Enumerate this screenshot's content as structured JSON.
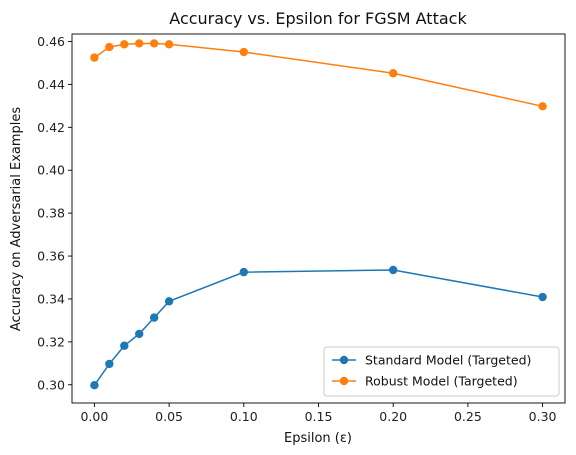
{
  "chart_data": {
    "type": "line",
    "title": "Accuracy vs. Epsilon for FGSM Attack",
    "xlabel": "Epsilon (ε)",
    "ylabel": "Accuracy on Adversarial Examples",
    "xlim": [
      -0.015,
      0.315
    ],
    "ylim": [
      0.2915,
      0.4635
    ],
    "xticks": [
      0.0,
      0.05,
      0.1,
      0.15,
      0.2,
      0.25,
      0.3
    ],
    "xtick_labels": [
      "0.00",
      "0.05",
      "0.10",
      "0.15",
      "0.20",
      "0.25",
      "0.30"
    ],
    "yticks": [
      0.3,
      0.32,
      0.34,
      0.36,
      0.38,
      0.4,
      0.42,
      0.44,
      0.46
    ],
    "ytick_labels": [
      "0.30",
      "0.32",
      "0.34",
      "0.36",
      "0.38",
      "0.40",
      "0.42",
      "0.44",
      "0.46"
    ],
    "x": [
      0.0,
      0.01,
      0.02,
      0.03,
      0.04,
      0.05,
      0.1,
      0.2,
      0.3
    ],
    "series": [
      {
        "name": "Standard Model (Targeted)",
        "color": "#1f77b4",
        "values": [
          0.2998,
          0.3097,
          0.3182,
          0.3237,
          0.3313,
          0.3389,
          0.3525,
          0.3535,
          0.3409
        ]
      },
      {
        "name": "Robust Model (Targeted)",
        "color": "#ff7f0e",
        "values": [
          0.4525,
          0.4574,
          0.4587,
          0.4591,
          0.4591,
          0.4587,
          0.4551,
          0.4452,
          0.4298
        ]
      }
    ],
    "grid": false,
    "legend_position": "lower-right",
    "marker": "circle"
  }
}
